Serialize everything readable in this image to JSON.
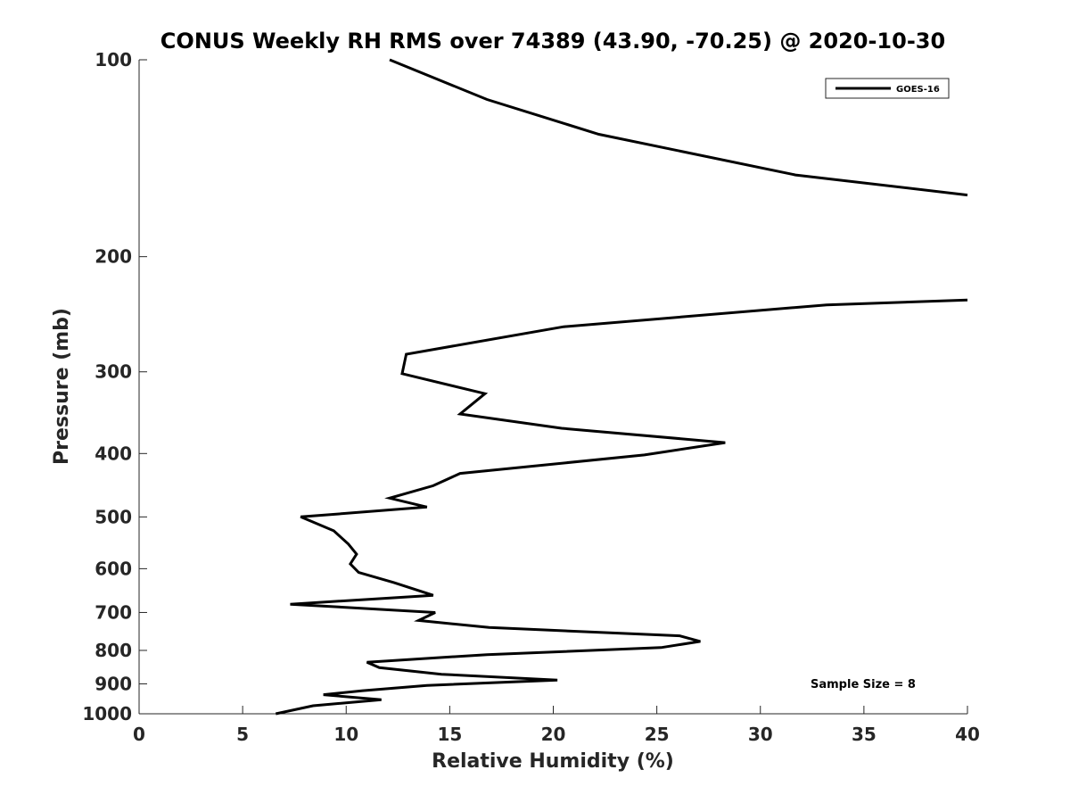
{
  "chart_data": {
    "type": "line",
    "title": "CONUS Weekly RH RMS over 74389 (43.90, -70.25) @ 2020-10-30",
    "xlabel": "Relative Humidity (%)",
    "ylabel": "Pressure (mb)",
    "xlim": [
      0,
      40
    ],
    "ylim": [
      100,
      1000
    ],
    "y_scale": "log",
    "y_reversed": true,
    "x_ticks": [
      "0",
      "5",
      "10",
      "15",
      "20",
      "25",
      "30",
      "35",
      "40"
    ],
    "y_ticks": [
      "100",
      "200",
      "300",
      "400",
      "500",
      "600",
      "700",
      "800",
      "900",
      "1000"
    ],
    "grid": false,
    "legend_position": "top-right",
    "annotation": "Sample Size = 8",
    "series": [
      {
        "name": "GOES-16",
        "color": "#000000",
        "segments": [
          [
            [
              12.1,
              100
            ],
            [
              16.8,
              115
            ],
            [
              22.2,
              130
            ],
            [
              31.7,
              150
            ],
            [
              40.0,
              161
            ]
          ],
          [
            [
              40.0,
              233
            ],
            [
              33.2,
              237
            ],
            [
              20.5,
              256
            ],
            [
              12.9,
              282
            ],
            [
              12.7,
              302
            ],
            [
              16.7,
              324
            ],
            [
              15.5,
              348
            ],
            [
              20.4,
              366
            ],
            [
              28.3,
              385
            ],
            [
              24.4,
              402
            ],
            [
              15.5,
              429
            ],
            [
              14.2,
              448
            ],
            [
              12.1,
              468
            ],
            [
              13.9,
              483
            ],
            [
              7.8,
              500
            ],
            [
              9.4,
              525
            ],
            [
              10.1,
              550
            ],
            [
              10.5,
              570
            ],
            [
              10.2,
              590
            ],
            [
              10.6,
              608
            ],
            [
              12.3,
              630
            ],
            [
              14.2,
              659
            ],
            [
              7.3,
              680
            ],
            [
              14.3,
              700
            ],
            [
              13.5,
              720
            ],
            [
              16.9,
              738
            ],
            [
              26.1,
              760
            ],
            [
              27.1,
              775
            ],
            [
              25.2,
              792
            ],
            [
              16.8,
              812
            ],
            [
              11.0,
              834
            ],
            [
              11.6,
              850
            ],
            [
              14.6,
              870
            ],
            [
              20.2,
              888
            ],
            [
              13.9,
              905
            ],
            [
              10.8,
              922
            ],
            [
              8.9,
              935
            ],
            [
              11.7,
              952
            ],
            [
              8.4,
              972
            ],
            [
              6.6,
              1000
            ]
          ]
        ]
      }
    ]
  }
}
